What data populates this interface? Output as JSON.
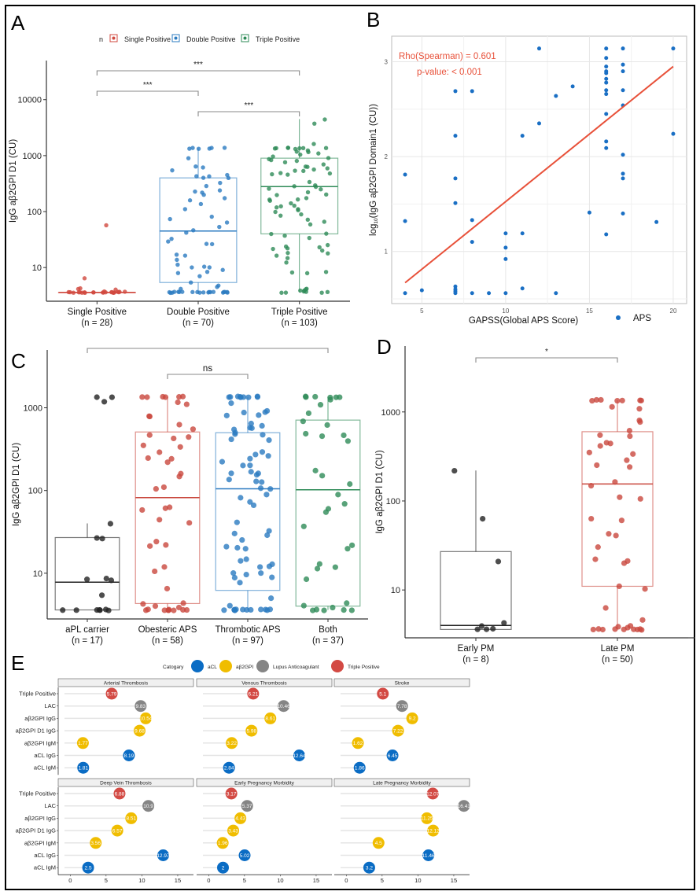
{
  "figure": {
    "panel_labels": [
      "A",
      "B",
      "C",
      "D",
      "E"
    ]
  },
  "chart_data": [
    {
      "panel": "A",
      "type": "box",
      "title": "",
      "xlabel": "",
      "ylabel": "IgG aβ2GPI D1 (CU)",
      "yscale": "log10",
      "ylim": [
        2.5,
        50000
      ],
      "yticks": [
        10,
        100,
        1000,
        10000
      ],
      "ytick_labels": [
        "10",
        "100",
        "1000",
        "10000"
      ],
      "legend": {
        "title": "n",
        "placement": "top",
        "entries": [
          "Single Positive",
          "Double Positive",
          "Triple Positive"
        ]
      },
      "categories": [
        "Single Positive",
        "Double Positive",
        "Triple Positive"
      ],
      "category_n": [
        "(n = 28)",
        "(n = 70)",
        "(n = 103)"
      ],
      "colors": [
        "#d1493f",
        "#2b7bc1",
        "#2e8b57"
      ],
      "boxes": [
        {
          "q1": 3.6,
          "median": 3.6,
          "q3": 3.6,
          "whisker_low": 3.6,
          "whisker_high": 3.6
        },
        {
          "q1": 5.4,
          "median": 45,
          "q3": 400,
          "whisker_low": 3.6,
          "whisker_high": 1350
        },
        {
          "q1": 40,
          "median": 280,
          "q3": 900,
          "whisker_low": 3.6,
          "whisker_high": 4500
        }
      ],
      "points": [
        [
          58,
          6.3,
          4.3,
          4.1,
          4.0,
          3.8,
          3.7,
          3.6,
          3.6,
          3.6,
          3.6,
          3.6,
          3.6,
          3.6,
          3.6,
          3.6,
          3.6,
          3.6,
          3.6,
          3.6,
          3.6,
          3.6,
          3.6,
          3.6,
          3.6,
          3.6,
          3.6,
          3.6
        ],
        [
          1350,
          1350,
          1350,
          1350,
          1350,
          1350,
          880,
          650,
          600,
          540,
          450,
          430,
          420,
          400,
          390,
          330,
          280,
          240,
          220,
          230,
          200,
          170,
          160,
          135,
          110,
          80,
          72,
          65,
          54,
          46,
          43,
          33,
          29,
          27,
          26,
          17,
          16,
          14,
          11,
          10.5,
          10.2,
          10,
          9,
          8.3,
          8.1,
          6.9,
          5.5,
          4.8,
          4.5,
          4.2,
          3.6,
          3.6,
          3.6,
          3.6,
          3.6,
          3.6,
          3.6,
          3.6,
          3.6,
          3.6,
          3.6,
          3.6,
          3.6,
          3.6,
          3.6,
          3.6,
          3.6,
          3.6,
          3.6,
          3.6
        ],
        [
          4500,
          3700,
          1650,
          1350,
          1350,
          1350,
          1350,
          1350,
          1350,
          1350,
          1300,
          1250,
          1200,
          1150,
          1100,
          1050,
          950,
          900,
          850,
          820,
          800,
          760,
          700,
          650,
          620,
          600,
          560,
          540,
          520,
          500,
          490,
          470,
          450,
          340,
          290,
          280,
          270,
          260,
          250,
          220,
          200,
          200,
          170,
          165,
          160,
          155,
          140,
          130,
          125,
          120,
          110,
          105,
          100,
          90,
          85,
          70,
          65,
          60,
          40,
          40,
          37,
          33,
          25,
          24,
          23,
          22,
          21,
          20,
          18,
          18,
          16,
          15,
          12.5,
          8.5,
          8,
          8,
          4.1,
          4.0,
          3.9,
          3.8,
          3.7,
          3.6,
          3.6,
          3.6,
          3.6,
          3.6
        ]
      ],
      "significance": [
        {
          "from": 0,
          "to": 2,
          "label": "***"
        },
        {
          "from": 0,
          "to": 1,
          "label": "***"
        },
        {
          "from": 1,
          "to": 2,
          "label": "***"
        }
      ]
    },
    {
      "panel": "B",
      "type": "scatter",
      "title": "",
      "xlabel": "GAPSS(Global APS Score)",
      "ylabel": "log10(IgG aβ2GPI Domain1 (CU))",
      "xlim": [
        3.2,
        20.8
      ],
      "ylim": [
        0.45,
        3.27
      ],
      "xticks": [
        5,
        10,
        15,
        20
      ],
      "yticks": [
        1,
        2,
        3
      ],
      "grid": true,
      "legend": {
        "placement": "bottom-right",
        "entries": [
          "APS"
        ]
      },
      "color": "#1a6fc4",
      "annotation": {
        "line1": "Rho(Spearman) = 0.601",
        "line2": "p-value: < 0.001",
        "color": "#e8513a"
      },
      "fit_line": {
        "x": [
          4,
          20
        ],
        "y": [
          0.67,
          2.95
        ],
        "color": "#e8513a"
      },
      "x": [
        4,
        4,
        4,
        5,
        7,
        7,
        7,
        7,
        7,
        7,
        7,
        7,
        8,
        8,
        8,
        8,
        9,
        10,
        10,
        10,
        10,
        11,
        11,
        11,
        12,
        12,
        13,
        13,
        14,
        15,
        16,
        16,
        16,
        16,
        16,
        16,
        16,
        16,
        16,
        16,
        16,
        16,
        16,
        17,
        17,
        17,
        17,
        17,
        17,
        17,
        17,
        17,
        19,
        20,
        20
      ],
      "y": [
        1.81,
        1.32,
        0.56,
        0.59,
        2.69,
        2.22,
        1.77,
        1.51,
        0.63,
        0.6,
        0.58,
        0.56,
        2.69,
        1.33,
        1.1,
        0.56,
        0.56,
        1.19,
        1.04,
        0.92,
        0.56,
        1.19,
        2.22,
        0.61,
        3.14,
        2.35,
        2.64,
        0.56,
        2.74,
        1.41,
        3.14,
        3.04,
        2.95,
        2.9,
        2.88,
        2.82,
        2.78,
        2.7,
        2.66,
        2.45,
        2.16,
        2.09,
        1.18,
        3.14,
        2.97,
        2.9,
        2.7,
        2.54,
        2.02,
        1.82,
        1.77,
        1.4,
        1.31,
        3.14,
        2.24
      ]
    },
    {
      "panel": "C",
      "type": "box",
      "ylabel": "IgG aβ2GPI D1 (CU)",
      "yscale": "log10",
      "ylim": [
        2.8,
        5000
      ],
      "yticks": [
        10,
        100,
        1000
      ],
      "ytick_labels": [
        "10",
        "100",
        "1000"
      ],
      "categories": [
        "aPL carrier",
        "Obesteric APS",
        "Thrombotic APS",
        "Both"
      ],
      "category_n": [
        "(n = 17)",
        "(n = 58)",
        "(n = 97)",
        "(n = 37)"
      ],
      "colors": [
        "#222222",
        "#c9473d",
        "#2b7bc1",
        "#2e8b57"
      ],
      "boxes": [
        {
          "q1": 3.6,
          "median": 7.8,
          "q3": 27,
          "whisker_low": 3.6,
          "whisker_high": 40
        },
        {
          "q1": 4.3,
          "median": 82,
          "q3": 510,
          "whisker_low": 3.6,
          "whisker_high": 1350
        },
        {
          "q1": 6.2,
          "median": 105,
          "q3": 500,
          "whisker_low": 3.6,
          "whisker_high": 1350
        },
        {
          "q1": 4.0,
          "median": 102,
          "q3": 710,
          "whisker_low": 3.6,
          "whisker_high": 1350
        }
      ],
      "points": [
        [
          1350,
          1350,
          1180,
          40,
          27,
          26,
          8.6,
          8.4,
          8.3,
          5.5,
          3.6,
          3.6,
          3.6,
          3.6,
          3.6,
          3.6,
          3.6
        ],
        [
          1350,
          1350,
          1350,
          1350,
          1350,
          1350,
          1150,
          1100,
          800,
          780,
          620,
          560,
          470,
          440,
          420,
          350,
          340,
          290,
          250,
          240,
          220,
          160,
          150,
          110,
          105,
          62,
          62,
          58,
          44,
          40,
          24,
          22,
          21,
          12,
          10.5,
          6.5,
          4.4,
          4.2,
          4.0,
          3.8,
          3.6,
          3.6,
          3.6,
          3.6,
          3.6,
          3.6,
          3.6,
          3.6,
          3.6
        ],
        [
          1350,
          1350,
          1350,
          1350,
          1350,
          1350,
          1350,
          1350,
          1350,
          1150,
          900,
          880,
          920,
          800,
          820,
          640,
          600,
          580,
          560,
          540,
          500,
          480,
          470,
          420,
          410,
          290,
          270,
          260,
          240,
          220,
          200,
          200,
          170,
          160,
          160,
          155,
          135,
          125,
          130,
          105,
          104,
          90,
          82,
          72,
          67,
          41,
          32,
          30,
          29,
          25,
          21,
          20,
          20,
          15,
          14,
          13,
          12,
          12,
          10.2,
          10,
          9.5,
          9,
          8.7,
          7.6,
          5,
          4,
          3.6,
          3.6,
          3.6,
          3.6,
          3.6,
          3.6,
          3.6,
          3.6,
          3.6,
          3.6,
          3.6,
          3.6
        ],
        [
          1350,
          1350,
          1350,
          1350,
          1350,
          1350,
          1250,
          1100,
          850,
          680,
          620,
          490,
          460,
          450,
          400,
          175,
          150,
          120,
          88,
          70,
          60,
          55,
          37,
          22,
          20,
          13,
          12,
          11.5,
          8.4,
          4.3,
          4.0,
          3.9,
          3.6,
          3.6,
          3.6,
          3.6,
          3.6
        ]
      ],
      "significance": [
        {
          "from": 0,
          "to": 3,
          "label": ""
        },
        {
          "from": 1,
          "to": 2,
          "label": "ns"
        }
      ]
    },
    {
      "panel": "D",
      "type": "box",
      "ylabel": "IgG aβ2GPI D1 (CU)",
      "yscale": "log10",
      "ylim": [
        2.9,
        5500
      ],
      "yticks": [
        10,
        100,
        1000
      ],
      "ytick_labels": [
        "10",
        "100",
        "1000"
      ],
      "categories": [
        "Early PM",
        "Late PM"
      ],
      "category_n": [
        "(n = 8)",
        "(n = 50)"
      ],
      "colors": [
        "#222222",
        "#c9473d"
      ],
      "boxes": [
        {
          "q1": 3.6,
          "median": 4.0,
          "q3": 27,
          "whisker_low": 3.6,
          "whisker_high": 220
        },
        {
          "q1": 11,
          "median": 155,
          "q3": 600,
          "whisker_low": 3.6,
          "whisker_high": 1350
        }
      ],
      "points": [
        [
          220,
          63,
          21,
          4.3,
          3.9,
          3.7,
          3.6,
          3.6
        ],
        [
          1350,
          1350,
          1350,
          1350,
          1350,
          1350,
          1350,
          1150,
          1100,
          800,
          780,
          620,
          550,
          530,
          450,
          440,
          410,
          350,
          340,
          290,
          250,
          240,
          165,
          150,
          110,
          105,
          64,
          60,
          43,
          41,
          30,
          22,
          21,
          20,
          11,
          10.2,
          6.3,
          4.6,
          4.0,
          3.9,
          3.8,
          3.6,
          3.6,
          3.6,
          3.6,
          3.6,
          3.6,
          3.6,
          3.6,
          3.6
        ]
      ],
      "significance": [
        {
          "from": 0,
          "to": 1,
          "label": "*"
        }
      ]
    },
    {
      "panel": "E",
      "type": "dot-lollipop",
      "legend": {
        "title": "Catogary",
        "placement": "top",
        "entries": [
          {
            "label": "aCL",
            "color": "#0a6cc4"
          },
          {
            "label": "aβ2GPI",
            "color": "#f0bd00"
          },
          {
            "label": "Lupus Anticoagulant",
            "color": "#858585"
          },
          {
            "label": "Triple Positive",
            "color": "#d34a44"
          }
        ]
      },
      "rows": [
        "Triple Positive",
        "LAC",
        "aβ2GPI IgG",
        "aβ2GPI D1 IgG",
        "aβ2GPI IgM",
        "aCL IgG",
        "aCL IgM"
      ],
      "row_category": [
        "Triple Positive",
        "Lupus Anticoagulant",
        "aβ2GPI",
        "aβ2GPI",
        "aβ2GPI",
        "aCL",
        "aCL"
      ],
      "xlim": [
        -0.8,
        17.2
      ],
      "xticks": [
        0,
        5,
        10,
        15
      ],
      "facets": [
        {
          "title": "Arterial Thrombosis",
          "values": [
            5.79,
            9.83,
            10.54,
            9.68,
            1.77,
            8.19,
            1.81
          ]
        },
        {
          "title": "Venous Thrombosis",
          "values": [
            6.21,
            10.46,
            8.61,
            5.98,
            3.22,
            12.64,
            2.84
          ]
        },
        {
          "title": "Stroke",
          "values": [
            5.1,
            7.78,
            9.2,
            7.22,
            1.62,
            6.45,
            1.86
          ]
        },
        {
          "title": "Deep Vein Thrombosis",
          "values": [
            6.88,
            10.9,
            8.51,
            6.57,
            3.56,
            12.97,
            2.5
          ]
        },
        {
          "title": "Early Pregnancy Morbidity",
          "values": [
            3.17,
            5.37,
            4.43,
            3.43,
            1.96,
            5.02,
            2
          ]
        },
        {
          "title": "Late Pregnancy Morbidity",
          "values": [
            12.07,
            16.41,
            11.25,
            12.12,
            4.5,
            11.46,
            3.2
          ]
        }
      ]
    }
  ]
}
